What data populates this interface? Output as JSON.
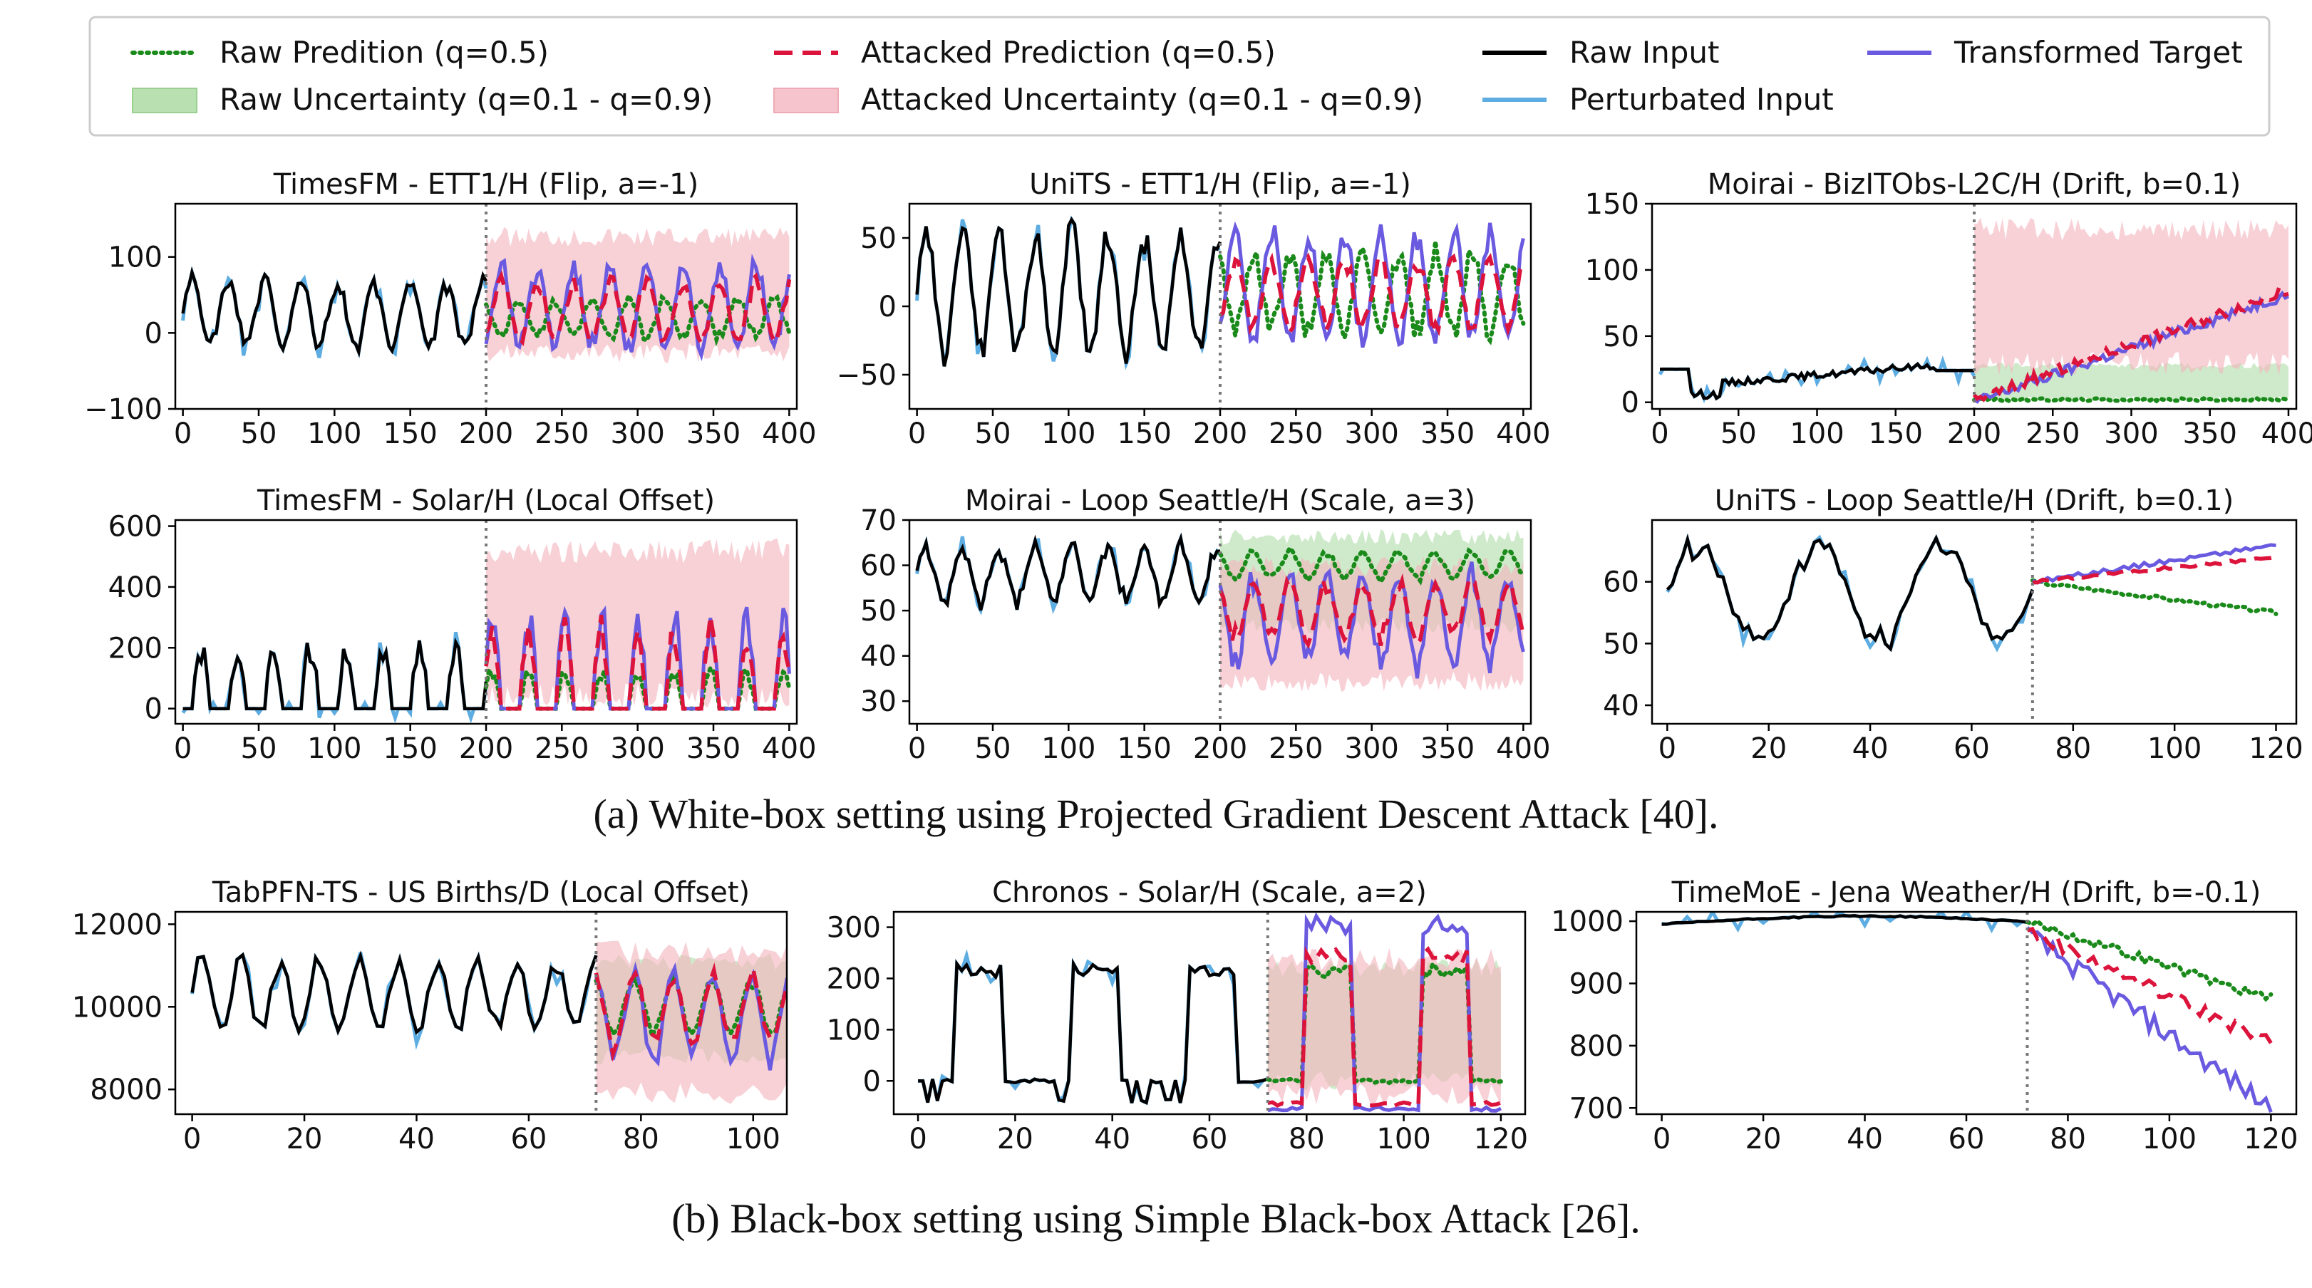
{
  "legend": {
    "items": [
      {
        "label": "Raw Predition (q=0.5)",
        "kind": "line",
        "color": "#1a8a1a",
        "dash": "dotted"
      },
      {
        "label": "Raw Uncertainty (q=0.1 - q=0.9)",
        "kind": "patch",
        "color": "#b8e0b0"
      },
      {
        "label": "Attacked Prediction (q=0.5)",
        "kind": "line",
        "color": "#dc143c",
        "dash": "dashed"
      },
      {
        "label": "Attacked Uncertainty (q=0.1 - q=0.9)",
        "kind": "patch",
        "color": "#f6c4cc"
      },
      {
        "label": "Raw Input",
        "kind": "line",
        "color": "#000000",
        "dash": "solid"
      },
      {
        "label": "Perturbated Input",
        "kind": "line",
        "color": "#5dade2",
        "dash": "solid"
      },
      {
        "label": "Transformed Target",
        "kind": "line",
        "color": "#6a5ae0",
        "dash": "solid"
      }
    ]
  },
  "captions": {
    "a": "(a) White-box setting using Projected Gradient Descent Attack [40].",
    "b": "(b) Black-box setting using Simple Black-box Attack [26]."
  },
  "chart_data": [
    {
      "type": "line",
      "title": "TimesFM - ETT1/H (Flip, a=-1)",
      "xlim": [
        -5,
        405
      ],
      "ylim": [
        -100,
        170
      ],
      "xticks": [
        0,
        50,
        100,
        150,
        200,
        250,
        300,
        350,
        400
      ],
      "yticks": [
        -100,
        0,
        100
      ],
      "ytick_labels": [
        "−100",
        "0",
        "100"
      ],
      "split": 200,
      "series": {
        "raw_input": {
          "base": 25,
          "amp": 45,
          "period": 24,
          "n": 200
        },
        "perturbed_input": {
          "base": 20,
          "amp": 55,
          "period": 24,
          "n": 200
        },
        "raw_pred": {
          "base": 20,
          "amp": 25,
          "period": 24,
          "phase": 0
        },
        "attacked_pred": {
          "base": 30,
          "amp": 40,
          "period": 24,
          "phase": 12
        },
        "target": {
          "base": 35,
          "amp": 55,
          "period": 24,
          "phase": 12
        },
        "attacked_band": {
          "low": -40,
          "high": 140
        }
      }
    },
    {
      "type": "line",
      "title": "UniTS - ETT1/H (Flip, a=-1)",
      "xlim": [
        -5,
        405
      ],
      "ylim": [
        -75,
        75
      ],
      "xticks": [
        0,
        50,
        100,
        150,
        200,
        250,
        300,
        350,
        400
      ],
      "yticks": [
        -50,
        0,
        50
      ],
      "ytick_labels": [
        "−50",
        "0",
        "50"
      ],
      "split": 200,
      "series": {
        "raw_input": {
          "base": 10,
          "amp": 45,
          "period": 24,
          "n": 200
        },
        "perturbed_input": {
          "base": 8,
          "amp": 55,
          "period": 24,
          "n": 200
        },
        "raw_pred": {
          "base": 10,
          "amp": 30,
          "period": 24,
          "phase": 0
        },
        "attacked_pred": {
          "base": 10,
          "amp": 25,
          "period": 24,
          "phase": 12
        },
        "target": {
          "base": 15,
          "amp": 40,
          "period": 24,
          "phase": 12
        }
      }
    },
    {
      "type": "line",
      "title": "Moirai - BizITObs-L2C/H (Drift, b=0.1)",
      "xlim": [
        -5,
        405
      ],
      "ylim": [
        -5,
        150
      ],
      "xticks": [
        0,
        50,
        100,
        150,
        200,
        250,
        300,
        350,
        400
      ],
      "yticks": [
        0,
        50,
        100,
        150
      ],
      "ytick_labels": [
        "0",
        "50",
        "100",
        "150"
      ],
      "split": 200,
      "series": {
        "raw_input": {
          "kind": "steps",
          "n": 200
        },
        "raw_pred": {
          "kind": "flat",
          "value": 2
        },
        "attacked_pred": {
          "kind": "ramp",
          "from": 2,
          "to": 85
        },
        "target": {
          "kind": "ramp",
          "from": 0,
          "to": 82
        },
        "raw_band": {
          "low": 0,
          "high": 30
        },
        "attacked_band": {
          "low": 20,
          "high": 140
        }
      }
    },
    {
      "type": "line",
      "title": "TimesFM - Solar/H (Local Offset)",
      "xlim": [
        -5,
        405
      ],
      "ylim": [
        -50,
        620
      ],
      "xticks": [
        0,
        50,
        100,
        150,
        200,
        250,
        300,
        350,
        400
      ],
      "yticks": [
        0,
        200,
        400,
        600
      ],
      "ytick_labels": [
        "0",
        "200",
        "400",
        "600"
      ],
      "split": 200,
      "series": {
        "raw_input": {
          "kind": "solar",
          "peak": 200,
          "n": 200
        },
        "raw_pred": {
          "kind": "solar",
          "peak": 120
        },
        "attacked_pred": {
          "kind": "solar",
          "peak": 250
        },
        "target": {
          "kind": "solar",
          "peak": 300
        },
        "attacked_band": {
          "low": 0,
          "high": 560
        }
      }
    },
    {
      "type": "line",
      "title": "Moirai - Loop Seattle/H (Scale, a=3)",
      "xlim": [
        -5,
        405
      ],
      "ylim": [
        25,
        70
      ],
      "xticks": [
        0,
        50,
        100,
        150,
        200,
        250,
        300,
        350,
        400
      ],
      "yticks": [
        30,
        40,
        50,
        60,
        70
      ],
      "ytick_labels": [
        "30",
        "40",
        "50",
        "60",
        "70"
      ],
      "split": 200,
      "series": {
        "raw_input": {
          "base": 58,
          "amp": 6,
          "n": 200
        },
        "raw_pred": {
          "base": 60,
          "amp": 3
        },
        "attacked_pred": {
          "base": 50,
          "amp": 6
        },
        "target": {
          "base": 48,
          "amp": 10
        },
        "raw_band": {
          "low": 45,
          "high": 68
        },
        "attacked_band": {
          "low": 32,
          "high": 62
        }
      }
    },
    {
      "type": "line",
      "title": "UniTS - Loop Seattle/H (Drift, b=0.1)",
      "xlim": [
        -3,
        124
      ],
      "ylim": [
        37,
        70
      ],
      "xticks": [
        0,
        20,
        40,
        60,
        80,
        100,
        120
      ],
      "yticks": [
        40,
        50,
        60
      ],
      "ytick_labels": [
        "40",
        "50",
        "60"
      ],
      "split": 72,
      "series": {
        "raw_input": {
          "base": 58,
          "amp": 8,
          "n": 72
        },
        "raw_pred": {
          "from": 60,
          "to": 55
        },
        "attacked_pred": {
          "from": 60,
          "to": 64
        },
        "target": {
          "from": 60,
          "to": 66
        }
      }
    },
    {
      "type": "line",
      "title": "TabPFN-TS - US Births/D (Local Offset)",
      "xlim": [
        -3,
        106
      ],
      "ylim": [
        7400,
        12300
      ],
      "xticks": [
        0,
        20,
        40,
        60,
        80,
        100
      ],
      "yticks": [
        8000,
        10000,
        12000
      ],
      "ytick_labels": [
        "8000",
        "10000",
        "12000"
      ],
      "split": 72,
      "series": {
        "raw_input": {
          "base": 10300,
          "amp": 900,
          "period": 7,
          "n": 72
        },
        "raw_pred": {
          "base": 10000,
          "amp": 700,
          "period": 7
        },
        "attacked_pred": {
          "base": 9900,
          "amp": 900,
          "period": 7
        },
        "target": {
          "base": 9800,
          "amp": 1100,
          "period": 7
        },
        "raw_band": {
          "low": 8600,
          "high": 11300
        },
        "attacked_band": {
          "low": 7600,
          "high": 11600
        }
      }
    },
    {
      "type": "line",
      "title": "Chronos - Solar/H (Scale, a=2)",
      "xlim": [
        -5,
        125
      ],
      "ylim": [
        -65,
        330
      ],
      "xticks": [
        0,
        20,
        40,
        60,
        80,
        100,
        120
      ],
      "yticks": [
        0,
        100,
        200,
        300
      ],
      "ytick_labels": [
        "0",
        "100",
        "200",
        "300"
      ],
      "split": 72,
      "series": {
        "raw_input": {
          "kind": "square",
          "peak": 220,
          "n": 72
        },
        "raw_pred": {
          "kind": "square",
          "peak": 220,
          "floor": 0
        },
        "attacked_pred": {
          "kind": "square",
          "peak": 250,
          "floor": -45
        },
        "target": {
          "kind": "square",
          "peak": 310,
          "floor": -55
        },
        "raw_band": {
          "low": -20,
          "high": 240
        },
        "attacked_band": {
          "low": -50,
          "high": 260
        }
      }
    },
    {
      "type": "line",
      "title": "TimeMoE - Jena Weather/H (Drift, b=-0.1)",
      "xlim": [
        -5,
        125
      ],
      "ylim": [
        690,
        1015
      ],
      "xticks": [
        0,
        20,
        40,
        60,
        80,
        100,
        120
      ],
      "yticks": [
        700,
        800,
        900,
        1000
      ],
      "ytick_labels": [
        "700",
        "800",
        "900",
        "1000"
      ],
      "split": 72,
      "series": {
        "raw_input": {
          "kind": "smooth",
          "from": 995,
          "peak": 1008,
          "to": 1003,
          "n": 72
        },
        "raw_pred": {
          "from": 1000,
          "to": 875
        },
        "attacked_pred": {
          "from": 985,
          "to": 805
        },
        "target": {
          "from": 980,
          "to": 700
        }
      }
    }
  ]
}
